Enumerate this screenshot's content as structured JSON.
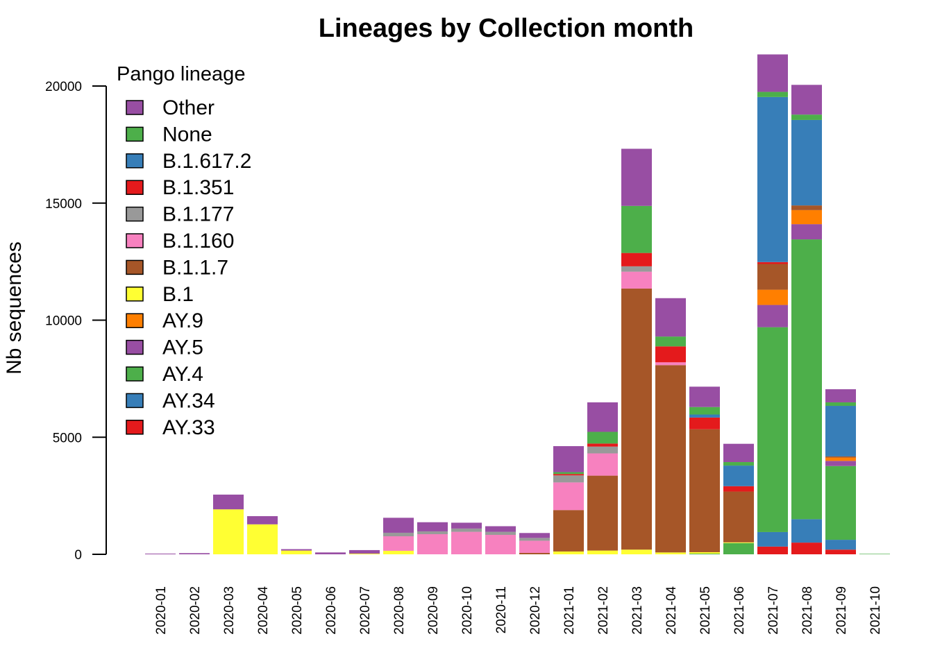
{
  "chart_data": {
    "type": "bar",
    "stacked": true,
    "title": "Lineages by Collection month",
    "xlabel": "",
    "ylabel": "Nb sequences",
    "ylim": [
      0,
      20000
    ],
    "yticks": [
      0,
      5000,
      10000,
      15000,
      20000
    ],
    "grid": false,
    "legend": {
      "title": "Pango lineage",
      "placement": "top-left",
      "entries": [
        "Other",
        "None",
        "B.1.617.2",
        "B.1.351",
        "B.1.177",
        "B.1.160",
        "B.1.1.7",
        "B.1",
        "AY.9",
        "AY.5",
        "AY.4",
        "AY.34",
        "AY.33"
      ]
    },
    "categories": [
      "2020-01",
      "2020-02",
      "2020-03",
      "2020-04",
      "2020-05",
      "2020-06",
      "2020-07",
      "2020-08",
      "2020-09",
      "2020-10",
      "2020-11",
      "2020-12",
      "2021-01",
      "2021-02",
      "2021-03",
      "2021-04",
      "2021-05",
      "2021-06",
      "2021-07",
      "2021-08",
      "2021-09",
      "2021-10"
    ],
    "series": [
      {
        "name": "AY.33",
        "color": "#E41A1C",
        "values": [
          0,
          0,
          0,
          0,
          0,
          0,
          0,
          0,
          0,
          0,
          0,
          0,
          0,
          0,
          0,
          0,
          0,
          0,
          330,
          500,
          200,
          0
        ]
      },
      {
        "name": "AY.34",
        "color": "#377EB8",
        "values": [
          0,
          0,
          0,
          0,
          0,
          0,
          0,
          0,
          0,
          0,
          0,
          0,
          0,
          0,
          0,
          0,
          0,
          0,
          620,
          1000,
          420,
          0
        ]
      },
      {
        "name": "AY.4",
        "color": "#4DAF4A",
        "values": [
          0,
          0,
          0,
          0,
          0,
          0,
          0,
          0,
          0,
          0,
          0,
          0,
          0,
          0,
          0,
          0,
          30,
          480,
          8750,
          11950,
          3150,
          0
        ]
      },
      {
        "name": "AY.5",
        "color": "#984EA3",
        "values": [
          0,
          0,
          0,
          0,
          0,
          0,
          0,
          0,
          0,
          0,
          0,
          0,
          0,
          0,
          0,
          0,
          0,
          0,
          950,
          650,
          220,
          0
        ]
      },
      {
        "name": "AY.9",
        "color": "#FF7F00",
        "values": [
          0,
          0,
          0,
          0,
          0,
          0,
          0,
          0,
          0,
          0,
          0,
          0,
          0,
          0,
          0,
          0,
          0,
          0,
          650,
          600,
          140,
          0
        ]
      },
      {
        "name": "B.1",
        "color": "#FFFF33",
        "values": [
          0,
          0,
          1920,
          1280,
          160,
          0,
          30,
          150,
          0,
          0,
          0,
          0,
          120,
          160,
          200,
          80,
          60,
          30,
          0,
          0,
          0,
          0
        ]
      },
      {
        "name": "B.1.1.7",
        "color": "#A65628",
        "values": [
          0,
          0,
          0,
          0,
          0,
          0,
          0,
          0,
          0,
          0,
          0,
          60,
          1770,
          3200,
          11150,
          8000,
          5250,
          2170,
          1100,
          200,
          50,
          0
        ]
      },
      {
        "name": "B.1.160",
        "color": "#F781BF",
        "values": [
          0,
          0,
          0,
          0,
          0,
          0,
          0,
          620,
          860,
          960,
          830,
          520,
          1180,
          950,
          720,
          120,
          0,
          0,
          0,
          0,
          0,
          0
        ]
      },
      {
        "name": "B.1.177",
        "color": "#999999",
        "values": [
          0,
          0,
          0,
          0,
          0,
          0,
          0,
          150,
          120,
          140,
          130,
          120,
          300,
          290,
          230,
          0,
          0,
          0,
          0,
          0,
          0,
          0
        ]
      },
      {
        "name": "B.1.351",
        "color": "#E41A1C",
        "values": [
          0,
          0,
          0,
          0,
          0,
          0,
          0,
          0,
          0,
          0,
          0,
          0,
          60,
          130,
          570,
          680,
          500,
          230,
          80,
          0,
          0,
          0
        ]
      },
      {
        "name": "B.1.617.2",
        "color": "#377EB8",
        "values": [
          0,
          0,
          0,
          0,
          0,
          0,
          0,
          0,
          0,
          0,
          0,
          0,
          0,
          0,
          0,
          0,
          130,
          880,
          7050,
          3650,
          2160,
          0
        ]
      },
      {
        "name": "None",
        "color": "#4DAF4A",
        "values": [
          0,
          0,
          0,
          0,
          0,
          0,
          0,
          0,
          0,
          0,
          0,
          0,
          80,
          500,
          2010,
          420,
          320,
          150,
          220,
          230,
          150,
          20
        ]
      },
      {
        "name": "Other",
        "color": "#984EA3",
        "values": [
          30,
          50,
          630,
          350,
          60,
          80,
          150,
          640,
          390,
          250,
          240,
          210,
          1110,
          1260,
          2440,
          1640,
          870,
          780,
          1600,
          1270,
          560,
          0
        ]
      }
    ]
  }
}
